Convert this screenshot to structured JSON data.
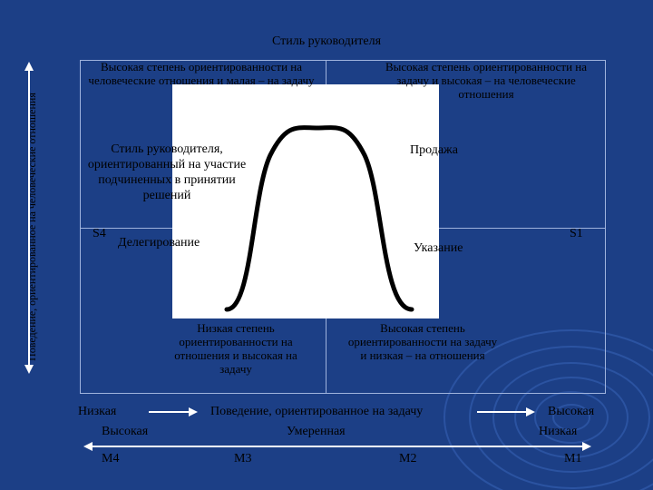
{
  "title": "Стиль руководителя",
  "side_label": "Поведение, ориентированное на человеческие отношения",
  "quadrants": {
    "top_left": "Высокая степень ориентированности на человеческие отношения и малая – на задачу",
    "top_right": "Высокая степень ориентированности на задачу и высокая – на человеческие отношения",
    "bottom_left": "Низкая степень ориентированности на отношения и высокая на задачу",
    "bottom_right": "Высокая степень ориентированности на задачу и низкая – на отношения"
  },
  "styles": {
    "participation": "Стиль руководителя, ориентированный на участие подчиненных в принятии решений",
    "selling": "Продажа",
    "delegating": "Делегирование",
    "telling": "Указание",
    "s4": "S4",
    "s1": "S1"
  },
  "task_axis": {
    "low": "Низкая",
    "label": "Поведение, ориентированное на задачу",
    "high": "Высокая"
  },
  "maturity_axis": {
    "high": "Высокая",
    "moderate": "Умеренная",
    "low": "Низкая"
  },
  "maturity_levels": [
    "M4",
    "M3",
    "M2",
    "M1"
  ],
  "colors": {
    "background": "#1c3f86",
    "grid_lines": "#9fb3dd",
    "curve_panel": "#ffffff",
    "text": "#000000"
  }
}
